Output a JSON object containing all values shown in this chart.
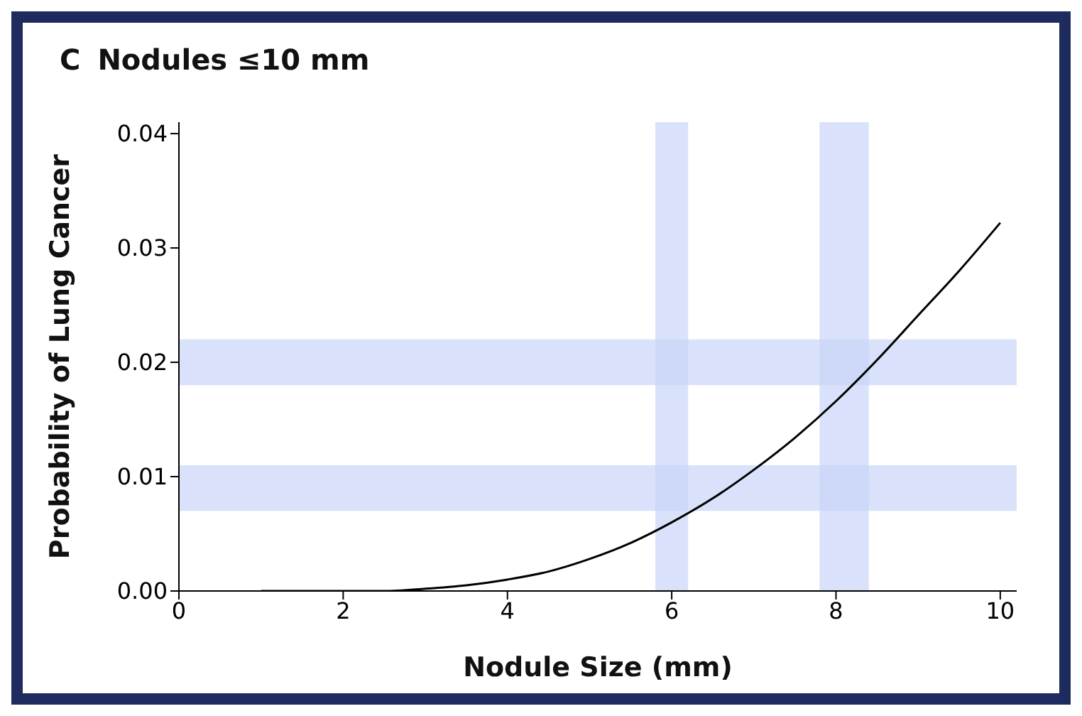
{
  "chart_data": {
    "type": "line",
    "title": "Nodules ≤10 mm",
    "annotations": [
      "C"
    ],
    "xlabel": "Nodule Size (mm)",
    "ylabel": "Probability of Lung Cancer",
    "x": [
      1,
      1.5,
      2,
      2.5,
      3,
      3.5,
      4,
      4.5,
      5,
      5.5,
      6,
      6.5,
      7,
      7.5,
      8,
      8.5,
      9,
      9.5,
      10
    ],
    "series": [
      {
        "color": "#000000",
        "values": [
          0,
          0,
          0,
          0,
          0.0002,
          0.0005,
          0.001,
          0.0017,
          0.0028,
          0.0042,
          0.006,
          0.0081,
          0.0106,
          0.0134,
          0.0166,
          0.0202,
          0.0241,
          0.028,
          0.0322
        ]
      }
    ],
    "xlim": [
      0,
      10.2
    ],
    "xticks": [
      0,
      2,
      4,
      6,
      8,
      10
    ],
    "ylim": [
      0,
      0.041
    ],
    "yticks": [
      {
        "value": 0,
        "label": "0.00"
      },
      {
        "value": 0.01,
        "label": "0.01"
      },
      {
        "value": 0.02,
        "label": "0.02"
      },
      {
        "value": 0.03,
        "label": "0.03"
      },
      {
        "value": 0.04,
        "label": "0.04"
      }
    ],
    "bands": [
      {
        "axis": "y",
        "from": 0.007,
        "to": 0.011,
        "color": "#c9d5f8"
      },
      {
        "axis": "y",
        "from": 0.018,
        "to": 0.022,
        "color": "#c9d5f8"
      },
      {
        "axis": "x",
        "from": 5.8,
        "to": 6.2,
        "color": "#c9d5f8"
      },
      {
        "axis": "x",
        "from": 7.8,
        "to": 8.4,
        "color": "#c9d5f8"
      }
    ],
    "grid": false,
    "legend": false,
    "marker": "none",
    "line_style": "solid"
  }
}
